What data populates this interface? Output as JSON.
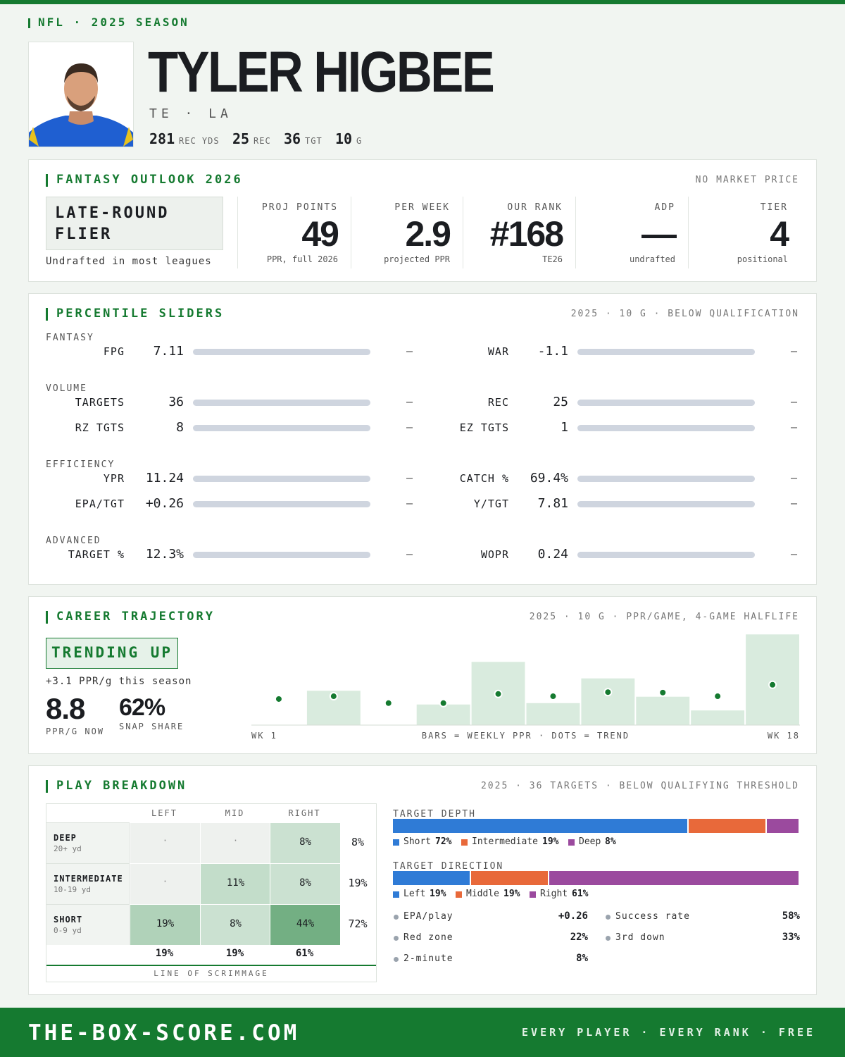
{
  "header": {
    "league": "NFL · 2025 SEASON",
    "name": "TYLER HIGBEE",
    "position": "TE · LA",
    "stats": [
      {
        "value": 281,
        "label": "REC YDS"
      },
      {
        "value": 25,
        "label": "REC"
      },
      {
        "value": 36,
        "label": "TGT"
      },
      {
        "value": 10,
        "label": "G"
      }
    ]
  },
  "outlook": {
    "title": "FANTASY OUTLOOK 2026",
    "note": "NO MARKET PRICE",
    "tag": "LATE-ROUND FLIER",
    "tag_note": "Undrafted in most leagues",
    "metrics": [
      {
        "label": "PROJ POINTS",
        "value": 49,
        "sub": "PPR, full 2026"
      },
      {
        "label": "PER WEEK",
        "value": 2.9,
        "sub": "projected PPR"
      },
      {
        "label": "OUR RANK",
        "value": "#168",
        "sub": "TE26"
      },
      {
        "label": "ADP",
        "value": "—",
        "sub": "undrafted"
      },
      {
        "label": "TIER",
        "value": 4,
        "sub": "positional"
      }
    ]
  },
  "percentiles": {
    "title": "PERCENTILE SLIDERS",
    "note": "2025 · 10 G · BELOW QUALIFICATION",
    "groups": [
      {
        "name": "FANTASY",
        "rows": [
          {
            "label": "FPG",
            "value": "7.11",
            "pct": "—"
          },
          {
            "label": "WAR",
            "value": "-1.1",
            "pct": "—"
          }
        ]
      },
      {
        "name": "VOLUME",
        "rows": [
          {
            "label": "TARGETS",
            "value": "36",
            "pct": "—"
          },
          {
            "label": "REC",
            "value": "25",
            "pct": "—"
          },
          {
            "label": "RZ TGTS",
            "value": "8",
            "pct": "—"
          },
          {
            "label": "EZ TGTS",
            "value": "1",
            "pct": "—"
          }
        ]
      },
      {
        "name": "EFFICIENCY",
        "rows": [
          {
            "label": "YPR",
            "value": "11.24",
            "pct": "—"
          },
          {
            "label": "CATCH %",
            "value": "69.4%",
            "pct": "—"
          },
          {
            "label": "EPA/TGT",
            "value": "+0.26",
            "pct": "—"
          },
          {
            "label": "Y/TGT",
            "value": "7.81",
            "pct": "—"
          }
        ]
      },
      {
        "name": "ADVANCED",
        "rows": [
          {
            "label": "TARGET %",
            "value": "12.3%",
            "pct": "—"
          },
          {
            "label": "WOPR",
            "value": "0.24",
            "pct": "—"
          }
        ]
      }
    ]
  },
  "career": {
    "title": "CAREER TRAJECTORY",
    "note": "2025 · 10 G · PPR/GAME, 4-GAME HALFLIFE",
    "tag": "TRENDING UP",
    "sub": "+3.1 PPR/g this season",
    "stats": [
      {
        "value": "8.8",
        "label": "PPR/G NOW"
      },
      {
        "value": "62%",
        "label": "SNAP SHARE"
      }
    ],
    "chart_data": {
      "type": "bar",
      "values": [
        0,
        7.5,
        0,
        4.5,
        13.8,
        4.8,
        10.2,
        6.2,
        3.2,
        19.8
      ],
      "trend": [
        5.7,
        6.3,
        4.8,
        4.8,
        6.8,
        6.3,
        7.2,
        7.1,
        6.3,
        8.8
      ],
      "ylim": [
        0,
        20
      ],
      "color": "#d9ebde",
      "trend_color": "#157a30",
      "x_start": "WK 1",
      "caption": "BARS = WEEKLY PPR · DOTS = TREND",
      "x_end": "WK 18"
    }
  },
  "breakdown": {
    "title": "PLAY BREAKDOWN",
    "note": "2025 · 36 TARGETS · BELOW QUALIFYING THRESHOLD",
    "columns": [
      "LEFT",
      "MID",
      "RIGHT"
    ],
    "rows": [
      {
        "name": "DEEP",
        "range": "20+ yd",
        "cells": [
          "·",
          "·",
          {
            "value": 8,
            "label": "8%"
          }
        ],
        "total": "8%"
      },
      {
        "name": "INTERMEDIATE",
        "range": "10-19 yd",
        "cells": [
          "·",
          {
            "value": 11,
            "label": "11%"
          },
          {
            "value": 8,
            "label": "8%"
          }
        ],
        "total": "19%"
      },
      {
        "name": "SHORT",
        "range": "0-9 yd",
        "cells": [
          {
            "value": 19,
            "label": "19%"
          },
          {
            "value": 8,
            "label": "8%"
          },
          {
            "value": 44,
            "label": "44%"
          }
        ],
        "total": "72%"
      }
    ],
    "totals": [
      "19%",
      "19%",
      "61%"
    ],
    "footer": "LINE OF SCRIMMAGE",
    "depth": {
      "title": "TARGET DEPTH",
      "segments": [
        {
          "name": "Short",
          "value": 72,
          "label": "72%",
          "color": "#2f7bd6"
        },
        {
          "name": "Intermediate",
          "value": 19,
          "label": "19%",
          "color": "#e8693a"
        },
        {
          "name": "Deep",
          "value": 8,
          "label": "8%",
          "color": "#9b4a9e"
        }
      ]
    },
    "direction": {
      "title": "TARGET DIRECTION",
      "segments": [
        {
          "name": "Left",
          "value": 19,
          "label": "19%",
          "color": "#2f7bd6"
        },
        {
          "name": "Middle",
          "value": 19,
          "label": "19%",
          "color": "#e8693a"
        },
        {
          "name": "Right",
          "value": 61,
          "label": "61%",
          "color": "#9b4a9e"
        }
      ]
    },
    "stats": [
      {
        "label": "EPA/play",
        "value": "+0.26"
      },
      {
        "label": "Success rate",
        "value": "58%"
      },
      {
        "label": "Red zone",
        "value": "22%"
      },
      {
        "label": "3rd down",
        "value": "33%"
      },
      {
        "label": "2-minute",
        "value": "8%"
      }
    ]
  },
  "footer": {
    "site": "THE-BOX-SCORE.COM",
    "tagline": "EVERY PLAYER · EVERY RANK · FREE"
  }
}
